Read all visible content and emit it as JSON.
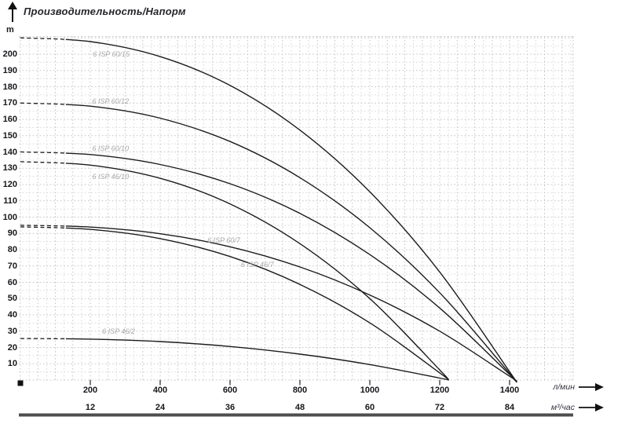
{
  "title": "Производительность/Напорм",
  "y_axis": {
    "unit_label": "m",
    "tick_values": [
      200,
      190,
      180,
      170,
      160,
      150,
      140,
      130,
      120,
      110,
      100,
      90,
      80,
      70,
      60,
      50,
      40,
      30,
      20,
      10
    ]
  },
  "x_axis_primary": {
    "unit": "л/мин",
    "tick_values": [
      200,
      400,
      600,
      800,
      1000,
      1200,
      1400
    ]
  },
  "x_axis_secondary": {
    "unit": "м³/час",
    "tick_values": [
      12,
      24,
      36,
      48,
      60,
      72,
      84
    ]
  },
  "colors": {
    "curve": "#1c1c1c",
    "grid_minor": "#dcdcdc",
    "grid_major": "#c9c9c9",
    "curve_label": "#a8a8a8",
    "text": "#17171c",
    "axis_bar": "#4e4e4e"
  },
  "chart_data": {
    "type": "line",
    "title": "Производительность/Напорм",
    "ylabel": "m",
    "xlabel_primary": "л/мин",
    "xlabel_secondary": "м³/час",
    "xlim_lmin": [
      0,
      1585
    ],
    "ylim_m": [
      0,
      211
    ],
    "grid": "light dashed grid, 25 л/мин horizontal step, 5 m vertical step",
    "legend_position": "italic gray labels placed on curves",
    "dashed_segment_below_flow_lmin": 130,
    "series": [
      {
        "name": "6 ISP 60/15",
        "shutoff_head_m": 210,
        "max_flow_lmin": 1415,
        "label_at_q_h": [
          260,
          200
        ],
        "points": [
          [
            0,
            210
          ],
          [
            200,
            207.7
          ],
          [
            400,
            198.5
          ],
          [
            600,
            180.8
          ],
          [
            800,
            153.4
          ],
          [
            1000,
            115.5
          ],
          [
            1200,
            66.3
          ],
          [
            1400,
            5.1
          ],
          [
            1415,
            0
          ]
        ]
      },
      {
        "name": "6 ISP 60/12",
        "shutoff_head_m": 170,
        "max_flow_lmin": 1415,
        "label_at_q_h": [
          258,
          171
        ],
        "points": [
          [
            0,
            170
          ],
          [
            200,
            168.1
          ],
          [
            400,
            160.7
          ],
          [
            600,
            146.4
          ],
          [
            800,
            124.2
          ],
          [
            1000,
            93.5
          ],
          [
            1200,
            53.6
          ],
          [
            1400,
            4.1
          ],
          [
            1415,
            0
          ]
        ]
      },
      {
        "name": "6 ISP 60/10",
        "shutoff_head_m": 140,
        "max_flow_lmin": 1415,
        "label_at_q_h": [
          258,
          142
        ],
        "points": [
          [
            0,
            140
          ],
          [
            200,
            138.4
          ],
          [
            400,
            132.3
          ],
          [
            600,
            120.5
          ],
          [
            800,
            102.3
          ],
          [
            1000,
            77.0
          ],
          [
            1200,
            44.2
          ],
          [
            1400,
            3.4
          ],
          [
            1415,
            0
          ]
        ]
      },
      {
        "name": "6 ISP 46/10",
        "shutoff_head_m": 134,
        "max_flow_lmin": 1225,
        "label_at_q_h": [
          258,
          125
        ],
        "points": [
          [
            0,
            134
          ],
          [
            200,
            131.9
          ],
          [
            400,
            123.8
          ],
          [
            600,
            108.1
          ],
          [
            800,
            83.7
          ],
          [
            1000,
            50.0
          ],
          [
            1200,
            6.2
          ],
          [
            1225,
            0
          ]
        ]
      },
      {
        "name": "6 ISP 60/7",
        "shutoff_head_m": 95,
        "max_flow_lmin": 1415,
        "label_at_q_h": [
          582,
          86
        ],
        "points": [
          [
            0,
            95
          ],
          [
            200,
            93.9
          ],
          [
            400,
            89.8
          ],
          [
            600,
            81.8
          ],
          [
            800,
            69.4
          ],
          [
            1000,
            52.2
          ],
          [
            1200,
            30.0
          ],
          [
            1400,
            2.3
          ],
          [
            1415,
            0
          ]
        ]
      },
      {
        "name": "6 ISP 46/7",
        "shutoff_head_m": 94,
        "max_flow_lmin": 1225,
        "label_at_q_h": [
          678,
          71
        ],
        "points": [
          [
            0,
            94
          ],
          [
            200,
            92.5
          ],
          [
            400,
            86.8
          ],
          [
            600,
            75.8
          ],
          [
            800,
            58.7
          ],
          [
            1000,
            35.1
          ],
          [
            1200,
            4.4
          ],
          [
            1225,
            0
          ]
        ]
      },
      {
        "name": "6 ISP 46/2",
        "shutoff_head_m": 25.5,
        "max_flow_lmin": 1225,
        "label_at_q_h": [
          281,
          30
        ],
        "points": [
          [
            0,
            25.5
          ],
          [
            200,
            25.1
          ],
          [
            400,
            23.6
          ],
          [
            600,
            20.6
          ],
          [
            800,
            15.9
          ],
          [
            1000,
            9.5
          ],
          [
            1200,
            1.2
          ],
          [
            1225,
            0
          ]
        ]
      }
    ]
  }
}
